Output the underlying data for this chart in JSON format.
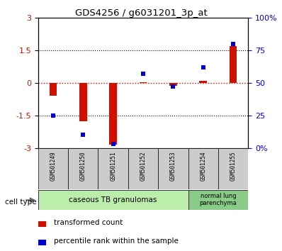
{
  "title": "GDS4256 / g6031201_3p_at",
  "samples": [
    "GSM501249",
    "GSM501250",
    "GSM501251",
    "GSM501252",
    "GSM501253",
    "GSM501254",
    "GSM501255"
  ],
  "transformed_count": [
    -0.6,
    -1.75,
    -2.85,
    0.02,
    -0.12,
    0.1,
    1.7
  ],
  "percentile_rank": [
    25,
    10,
    3,
    57,
    47,
    62,
    80
  ],
  "red_color": "#cc1100",
  "blue_color": "#0000cc",
  "ylim_left": [
    -3,
    3
  ],
  "ylim_right": [
    0,
    100
  ],
  "yticks_left": [
    -3,
    -1.5,
    0,
    1.5,
    3
  ],
  "yticks_right": [
    0,
    25,
    50,
    75,
    100
  ],
  "group1_label": "caseous TB granulomas",
  "group2_label": "normal lung\nparenchyma",
  "group1_color": "#bbeeaa",
  "group2_color": "#88cc88",
  "cell_type_label": "cell type",
  "legend_red": "transformed count",
  "legend_blue": "percentile rank within the sample",
  "bar_width": 0.25,
  "bg_color": "#ffffff",
  "tick_box_color": "#cccccc"
}
